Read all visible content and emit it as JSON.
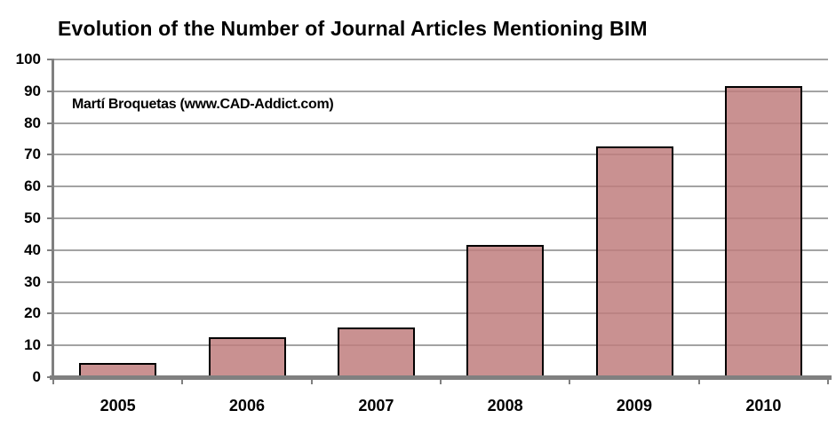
{
  "chart_data": {
    "type": "bar",
    "title": "Evolution of the Number of Journal Articles Mentioning BIM",
    "annotation": "Martí Broquetas (www.CAD-Addict.com)",
    "categories": [
      "2005",
      "2006",
      "2007",
      "2008",
      "2009",
      "2010"
    ],
    "values": [
      4,
      12,
      15,
      41,
      72,
      91
    ],
    "xlabel": "",
    "ylabel": "",
    "ylim": [
      0,
      100
    ],
    "yticks": [
      0,
      10,
      20,
      30,
      40,
      50,
      60,
      70,
      80,
      90,
      100
    ],
    "grid": true,
    "legend": "none",
    "colors": {
      "bar_fill": "#bf7e7e",
      "bar_border": "#000000",
      "grid_color": "#a3a3a3",
      "axis_color": "#808080",
      "text_color": "#000000",
      "background": "#ffffff"
    }
  }
}
